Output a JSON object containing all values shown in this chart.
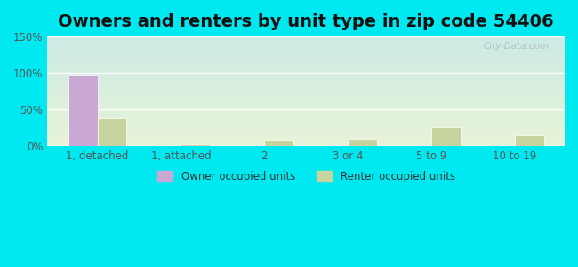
{
  "title": "Owners and renters by unit type in zip code 54406",
  "categories": [
    "1, detached",
    "1, attached",
    "2",
    "3 or 4",
    "5 to 9",
    "10 to 19"
  ],
  "owner_values": [
    97,
    0,
    0,
    0,
    0,
    0
  ],
  "renter_values": [
    38,
    2,
    8,
    10,
    26,
    15
  ],
  "owner_color": "#c9a8d4",
  "renter_color": "#c8d4a0",
  "ylim": [
    0,
    150
  ],
  "yticks": [
    0,
    50,
    100,
    150
  ],
  "ytick_labels": [
    "0%",
    "50%",
    "100%",
    "150%"
  ],
  "background_top": "#cceae4",
  "background_bottom": "#e8f4d8",
  "outer_bg": "#00e8f0",
  "title_fontsize": 14,
  "bar_width": 0.35,
  "watermark": "City-Data.com",
  "legend_owner": "Owner occupied units",
  "legend_renter": "Renter occupied units"
}
